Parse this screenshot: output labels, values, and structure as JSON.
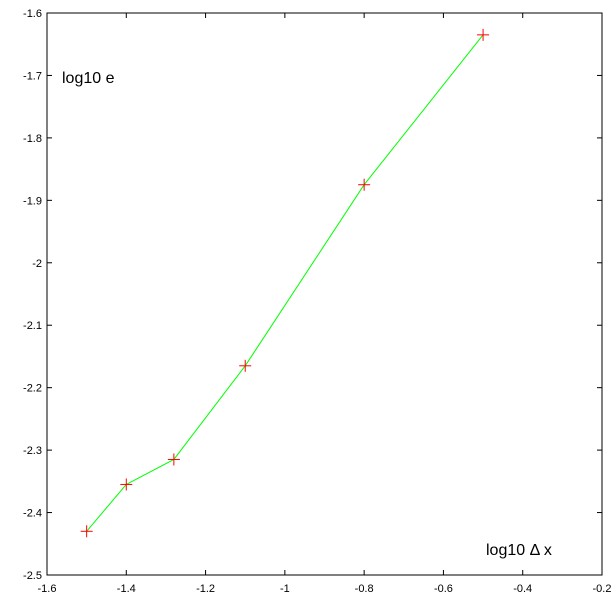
{
  "chart_data": {
    "type": "line",
    "title": "",
    "xlabel": "",
    "ylabel": "",
    "xlim": [
      -1.6,
      -0.2
    ],
    "ylim": [
      -2.5,
      -1.6
    ],
    "xticks": [
      "-1.6",
      "-1.4",
      "-1.2",
      "-1",
      "-0.8",
      "-0.6",
      "-0.4",
      "-0.2"
    ],
    "yticks": [
      "-1.6",
      "-1.7",
      "-1.8",
      "-1.9",
      "-2",
      "-2.1",
      "-2.2",
      "-2.3",
      "-2.4",
      "-2.5"
    ],
    "annotations": {
      "y_axis_text": "log10 e",
      "x_axis_text": "log10 Δ x"
    },
    "series": [
      {
        "x": [
          -1.5,
          -1.4,
          -1.28,
          -1.1,
          -0.8,
          -0.5
        ],
        "y": [
          -2.43,
          -2.355,
          -2.315,
          -2.165,
          -1.875,
          -1.635
        ],
        "line_color": "#00ff00",
        "marker": "plus",
        "marker_color": "#ff0000"
      }
    ],
    "grid": false,
    "legend": "none"
  }
}
